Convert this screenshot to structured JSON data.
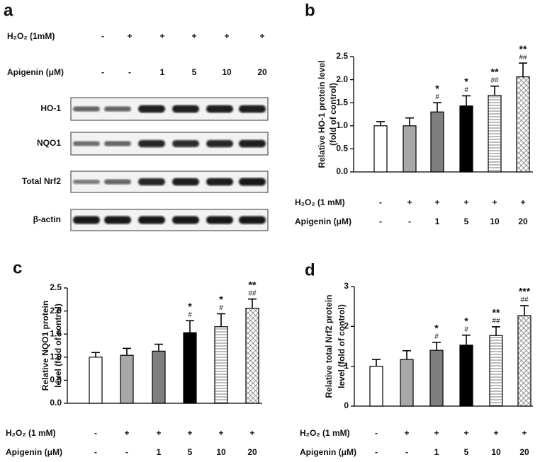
{
  "blot": {
    "label": "a",
    "conditions": [
      {
        "label": "H₂O₂ (1mM)",
        "values": [
          "-",
          "+",
          "+",
          "+",
          "+",
          "+"
        ]
      },
      {
        "label": "Apigenin (μM)",
        "values": [
          "-",
          "-",
          "1",
          "5",
          "10",
          "20"
        ]
      }
    ],
    "rows": [
      "HO-1",
      "NQO1",
      "Total Nrf2",
      "β-actin"
    ]
  },
  "chart_data": [
    {
      "type": "bar",
      "label": "b",
      "ylabel": [
        "Relative HO-1 protein level",
        "(fold of control)"
      ],
      "values": [
        1.0,
        1.0,
        1.3,
        1.43,
        1.66,
        2.06
      ],
      "errors": [
        0.09,
        0.17,
        0.2,
        0.22,
        0.2,
        0.3
      ],
      "sig_star": [
        null,
        null,
        "*",
        "*",
        "**",
        "**"
      ],
      "sig_hash": [
        null,
        null,
        "#",
        "#",
        "##",
        "##"
      ],
      "fills": [
        "white",
        "light-gray",
        "gray",
        "black",
        "horizontal-lines",
        "crosshatch"
      ],
      "ylim": [
        0,
        2.5
      ],
      "yticks": [
        {
          "value": 0,
          "label": "0.0"
        },
        0.5,
        {
          "value": 1,
          "label": "1.0"
        },
        1.5,
        {
          "value": 2,
          "label": "2.0"
        },
        2.5
      ],
      "conditions": [
        {
          "label": "H₂O₂ (1 mM)",
          "values": [
            "-",
            "+",
            "+",
            "+",
            "+",
            "+"
          ]
        },
        {
          "label": "Apigenin (μM)",
          "values": [
            "-",
            "-",
            "1",
            "5",
            "10",
            "20"
          ]
        }
      ]
    },
    {
      "type": "bar",
      "label": "c",
      "ylabel": [
        "Relative NQO1 protein",
        "level (fold of control)"
      ],
      "values": [
        1.0,
        1.04,
        1.13,
        1.53,
        1.66,
        2.06
      ],
      "errors": [
        0.1,
        0.15,
        0.15,
        0.26,
        0.28,
        0.2
      ],
      "sig_star": [
        null,
        null,
        null,
        "*",
        "*",
        "**"
      ],
      "sig_hash": [
        null,
        null,
        null,
        "#",
        "#",
        "##"
      ],
      "fills": [
        "white",
        "light-gray",
        "gray",
        "black",
        "horizontal-lines",
        "crosshatch"
      ],
      "ylim": [
        0,
        2.5
      ],
      "yticks": [
        {
          "value": 0,
          "label": "0.0"
        },
        0.5,
        {
          "value": 1,
          "label": "1.0"
        },
        1.5,
        {
          "value": 2,
          "label": "2.0"
        },
        2.5
      ],
      "conditions": [
        {
          "label": "H₂O₂ (1 mM)",
          "values": [
            "-",
            "+",
            "+",
            "+",
            "+",
            "+"
          ]
        },
        {
          "label": "Apigenin (μM)",
          "values": [
            "-",
            "-",
            "1",
            "5",
            "10",
            "20"
          ]
        }
      ]
    },
    {
      "type": "bar",
      "label": "d",
      "ylabel": [
        "Relative total Nrf2 protein",
        "level (fold of control)"
      ],
      "values": [
        1.0,
        1.17,
        1.4,
        1.53,
        1.77,
        2.27
      ],
      "errors": [
        0.17,
        0.22,
        0.2,
        0.25,
        0.22,
        0.25
      ],
      "sig_star": [
        null,
        null,
        "*",
        "*",
        "**",
        "***"
      ],
      "sig_hash": [
        null,
        null,
        "#",
        "#",
        "##",
        "##"
      ],
      "fills": [
        "white",
        "light-gray",
        "gray",
        "black",
        "horizontal-lines",
        "crosshatch"
      ],
      "ylim": [
        0,
        3
      ],
      "yticks": [
        0,
        1,
        2,
        3
      ],
      "conditions": [
        {
          "label": "H₂O₂ (1 mM)",
          "values": [
            "-",
            "+",
            "+",
            "+",
            "+",
            "+"
          ]
        },
        {
          "label": "Apigenin (μM)",
          "values": [
            "-",
            "-",
            "1",
            "5",
            "10",
            "20"
          ]
        }
      ]
    }
  ]
}
